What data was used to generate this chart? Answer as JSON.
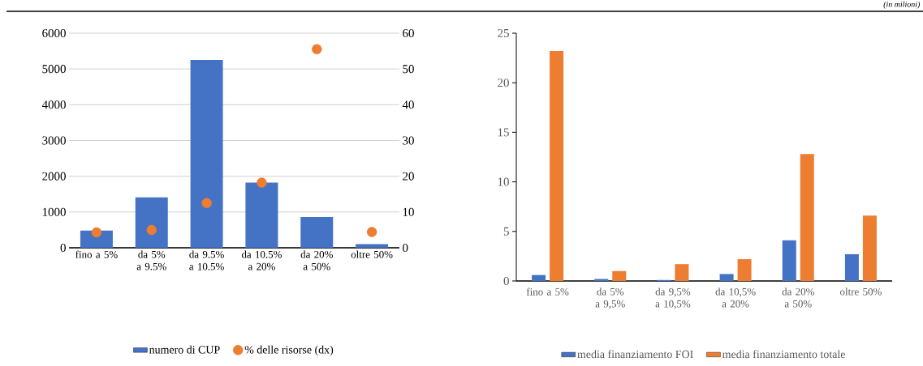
{
  "chart_data": [
    {
      "type": "bar",
      "categories": [
        "fino a 5%",
        "da 5% a 9.5%",
        "da 9.5% a 10.5%",
        "da 10.5% a 20%",
        "da 20% a 50%",
        "oltre 50%"
      ],
      "series": [
        {
          "name": "numero di CUP",
          "type": "bar",
          "color": "#4472c4",
          "values": [
            480,
            1410,
            5250,
            1820,
            860,
            100
          ]
        },
        {
          "name": "% delle risorse (dx)",
          "type": "scatter",
          "axis": "y2",
          "color": "#ed7d31",
          "values": [
            4.3,
            5.0,
            12.5,
            18.2,
            55.5,
            4.4
          ]
        }
      ],
      "ylim": [
        0,
        6000
      ],
      "yticks": [
        0,
        1000,
        2000,
        3000,
        4000,
        5000,
        6000
      ],
      "y2lim": [
        0,
        60
      ],
      "y2ticks": [
        0,
        10,
        20,
        30,
        40,
        50,
        60
      ],
      "grid": "y",
      "legend": "bottom"
    },
    {
      "type": "bar",
      "categories": [
        "fino a 5%",
        "da 5% a 9,5%",
        "da 9,5% a 10,5%",
        "da 10,5% a 20%",
        "da 20% a 50%",
        "oltre 50%"
      ],
      "series": [
        {
          "name": "media finanziamento FOI",
          "color": "#4472c4",
          "values": [
            0.6,
            0.2,
            0.1,
            0.7,
            4.1,
            2.7
          ]
        },
        {
          "name": "media finanziamento totale",
          "color": "#ed7d31",
          "values": [
            23.2,
            1.0,
            1.7,
            2.2,
            12.8,
            6.6
          ]
        }
      ],
      "ylim": [
        0,
        25
      ],
      "yticks": [
        0,
        5,
        10,
        15,
        20,
        25
      ],
      "legend": "bottom",
      "annotations": [
        "(in milioni)"
      ]
    }
  ]
}
